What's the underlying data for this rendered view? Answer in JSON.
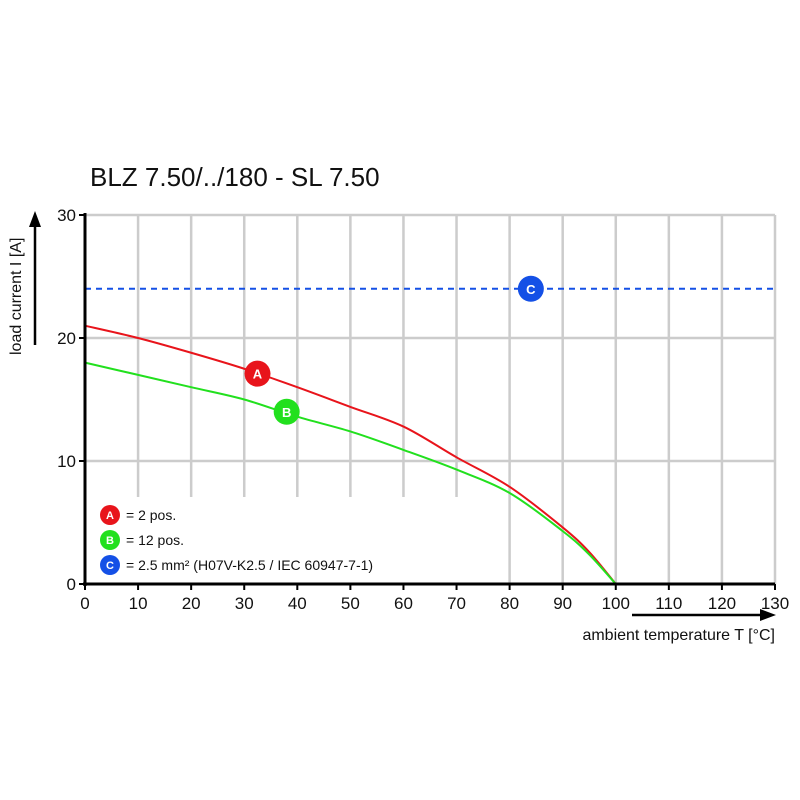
{
  "chart_data": {
    "type": "line",
    "title": "BLZ 7.50/../180 - SL 7.50",
    "xlabel": "ambient temperature T [°C]",
    "ylabel": "load current I [A]",
    "xlim": [
      0,
      130
    ],
    "ylim": [
      0,
      30
    ],
    "xticks": [
      "0",
      "10",
      "20",
      "30",
      "40",
      "50",
      "60",
      "70",
      "80",
      "90",
      "100",
      "110",
      "120",
      "130"
    ],
    "yticks": [
      "0",
      "10",
      "20",
      "30"
    ],
    "grid": true,
    "legend_position": "bottom-left",
    "series": [
      {
        "marker": "A",
        "name": "= 2 pos.",
        "color": "#e8141b",
        "style": "solid",
        "x": [
          0,
          10,
          20,
          30,
          40,
          50,
          60,
          70,
          80,
          90,
          95,
          100
        ],
        "y": [
          21.0,
          20.0,
          18.8,
          17.5,
          16.0,
          14.4,
          12.8,
          10.3,
          7.9,
          4.6,
          2.6,
          0
        ],
        "label_at": [
          32.5,
          17.1
        ]
      },
      {
        "marker": "B",
        "name": "= 12 pos.",
        "color": "#22e01e",
        "style": "solid",
        "x": [
          0,
          10,
          20,
          30,
          40,
          50,
          60,
          70,
          80,
          90,
          95,
          100
        ],
        "y": [
          18.0,
          17.0,
          16.0,
          15.0,
          13.6,
          12.4,
          10.9,
          9.3,
          7.4,
          4.3,
          2.4,
          0
        ],
        "label_at": [
          38,
          14.0
        ]
      },
      {
        "marker": "C",
        "name": "= 2.5 mm² (H07V-K2.5 / IEC 60947-7-1)",
        "color": "#1450e6",
        "style": "dashed",
        "x": [
          0,
          130
        ],
        "y": [
          24,
          24
        ],
        "label_at": [
          84,
          24
        ]
      }
    ]
  }
}
